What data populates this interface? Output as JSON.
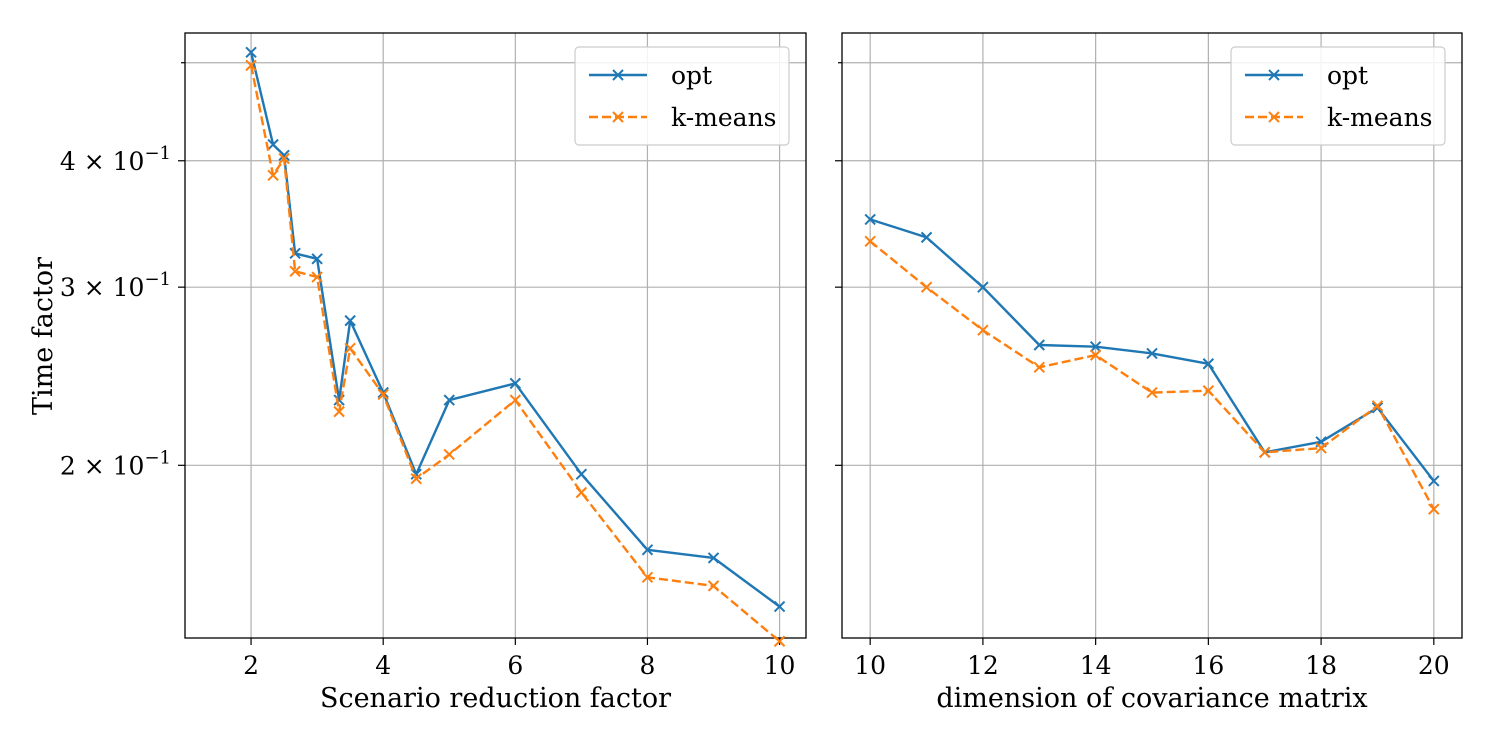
{
  "figure": {
    "shared_ylabel": "Time factor"
  },
  "colors": {
    "opt": "#1f77b4",
    "kmeans": "#ff7f0e"
  },
  "chart_data": [
    {
      "type": "line",
      "yscale": "log",
      "xlabel": "Scenario reduction factor",
      "ylabel": "Time factor",
      "xlim": [
        1,
        10.4
      ],
      "ylim": [
        0.135,
        0.535
      ],
      "xticks": [
        2,
        4,
        6,
        8,
        10
      ],
      "xtick_labels": [
        "2",
        "4",
        "6",
        "8",
        "10"
      ],
      "yticks": [
        0.2,
        0.3,
        0.4
      ],
      "ytick_labels": [
        "2 × 10^{−1}",
        "3 × 10^{−1}",
        "4 × 10^{−1}"
      ],
      "grid": true,
      "legend": "upper right",
      "series": [
        {
          "name": "opt",
          "style": "solid",
          "color": "#1f77b4",
          "x": [
            2,
            2.333,
            2.5,
            2.667,
            3,
            3.333,
            3.5,
            4,
            4.5,
            5,
            6,
            7,
            8,
            9,
            10
          ],
          "y": [
            0.512,
            0.415,
            0.405,
            0.324,
            0.32,
            0.232,
            0.278,
            0.236,
            0.196,
            0.232,
            0.241,
            0.196,
            0.165,
            0.162,
            0.145
          ]
        },
        {
          "name": "k-means",
          "style": "dashed",
          "color": "#ff7f0e",
          "x": [
            2,
            2.333,
            2.5,
            2.667,
            3,
            3.333,
            3.5,
            4,
            4.5,
            5,
            6,
            7,
            8,
            9,
            10
          ],
          "y": [
            0.497,
            0.387,
            0.402,
            0.311,
            0.307,
            0.226,
            0.261,
            0.235,
            0.194,
            0.205,
            0.232,
            0.188,
            0.155,
            0.152,
            0.134
          ]
        }
      ]
    },
    {
      "type": "line",
      "yscale": "log",
      "xlabel": "dimension of covariance matrix",
      "ylabel": "",
      "xlim": [
        9.5,
        20.5
      ],
      "ylim": [
        0.135,
        0.535
      ],
      "xticks": [
        10,
        12,
        14,
        16,
        18,
        20
      ],
      "xtick_labels": [
        "10",
        "12",
        "14",
        "16",
        "18",
        "20"
      ],
      "yticks": [
        0.2,
        0.3,
        0.4
      ],
      "ytick_labels": [
        "",
        "",
        ""
      ],
      "grid": true,
      "legend": "upper right",
      "series": [
        {
          "name": "opt",
          "style": "solid",
          "color": "#1f77b4",
          "x": [
            10,
            11,
            12,
            13,
            14,
            15,
            16,
            17,
            18,
            19,
            20
          ],
          "y": [
            0.35,
            0.336,
            0.3,
            0.263,
            0.262,
            0.258,
            0.252,
            0.206,
            0.211,
            0.228,
            0.193
          ]
        },
        {
          "name": "k-means",
          "style": "dashed",
          "color": "#ff7f0e",
          "x": [
            10,
            11,
            12,
            13,
            14,
            15,
            16,
            17,
            18,
            19,
            20
          ],
          "y": [
            0.333,
            0.3,
            0.272,
            0.25,
            0.257,
            0.236,
            0.237,
            0.206,
            0.208,
            0.229,
            0.181
          ]
        }
      ]
    }
  ]
}
